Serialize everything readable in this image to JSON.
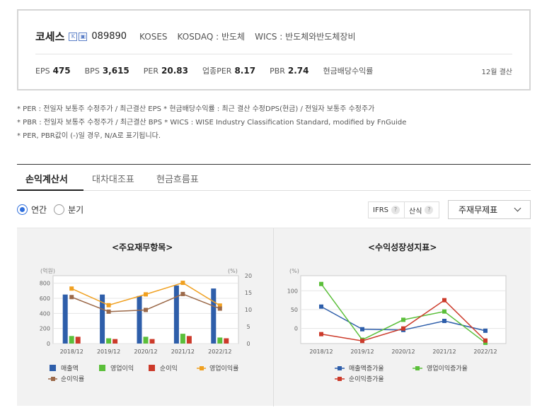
{
  "company": {
    "name": "코세스",
    "code": "089890",
    "english_name": "KOSES",
    "market": "KOSDAQ : 반도체",
    "wics": "WICS : 반도체와반도체장비"
  },
  "metrics": [
    {
      "label": "EPS",
      "value": "475"
    },
    {
      "label": "BPS",
      "value": "3,615"
    },
    {
      "label": "PER",
      "value": "20.83"
    },
    {
      "label": "업종PER",
      "value": "8.17"
    },
    {
      "label": "PBR",
      "value": "2.74"
    },
    {
      "label": "현금배당수익률",
      "value": ""
    }
  ],
  "settlement": "12월 결산",
  "notes": [
    "* PER : 전일자 보통주 수정주가 / 최근결산 EPS * 현금배당수익률 : 최근 결산 수정DPS(현금) / 전일자 보통주 수정주가",
    "* PBR : 전일자 보통주 수정주가 / 최근결산 BPS * WICS : WISE Industry Classification Standard, modified by FnGuide",
    "* PER, PBR값이 (-)일 경우, N/A로 표기됩니다."
  ],
  "tabs": [
    "손익계산서",
    "대차대조표",
    "현금흐름표"
  ],
  "period_options": [
    "연간",
    "분기"
  ],
  "options": {
    "ifrs": "IFRS",
    "calc": "산식",
    "help": "?"
  },
  "statement_select": "주재무제표",
  "colors": {
    "blue": "#2e5eaa",
    "green": "#5bbf3a",
    "red": "#cc3a2a",
    "orange": "#f0a020",
    "brown": "#9c6a4a",
    "accent": "#2f6fdc"
  },
  "chart_data": [
    {
      "type": "bar",
      "title": "<주요재무항목>",
      "ylabel": "(억원)",
      "y2label": "(%)",
      "ylim": [
        0,
        900
      ],
      "y2lim": [
        0,
        20
      ],
      "yticks": [
        "0",
        "200",
        "400",
        "600",
        "800"
      ],
      "y2ticks": [
        "0",
        "5",
        "10",
        "15",
        "20"
      ],
      "categories": [
        "2018/12",
        "2019/12",
        "2020/12",
        "2021/12",
        "2022/12"
      ],
      "series": [
        {
          "name": "매출액",
          "kind": "bar",
          "axis": "left",
          "color": "#2e5eaa",
          "values": [
            650,
            650,
            630,
            770,
            730
          ]
        },
        {
          "name": "영업이익",
          "kind": "bar",
          "axis": "left",
          "color": "#5bbf3a",
          "values": [
            100,
            70,
            90,
            130,
            80
          ]
        },
        {
          "name": "순이익",
          "kind": "bar",
          "axis": "left",
          "color": "#cc3a2a",
          "values": [
            90,
            60,
            60,
            100,
            70
          ]
        },
        {
          "name": "영업이익률",
          "kind": "line",
          "axis": "right",
          "color": "#f0a020",
          "values": [
            16.2,
            11.3,
            14.5,
            17.9,
            11.2
          ]
        },
        {
          "name": "순이익률",
          "kind": "line",
          "axis": "right",
          "color": "#9c6a4a",
          "values": [
            13.7,
            9.4,
            9.9,
            14.6,
            10.3
          ]
        }
      ],
      "legend": "bottom"
    },
    {
      "type": "line",
      "title": "<수익성장성지표>",
      "ylabel": "(%)",
      "ylim": [
        -40,
        140
      ],
      "yticks": [
        "0",
        "50",
        "100"
      ],
      "categories": [
        "2018/12",
        "2019/12",
        "2020/12",
        "2021/12",
        "2022/12"
      ],
      "series": [
        {
          "name": "매출액증가율",
          "color": "#2e5eaa",
          "values": [
            58,
            -2,
            -4,
            20,
            -6
          ]
        },
        {
          "name": "영업이익증가율",
          "color": "#5bbf3a",
          "values": [
            118,
            -30,
            23,
            45,
            -38
          ]
        },
        {
          "name": "순이익증가율",
          "color": "#cc3a2a",
          "values": [
            -15,
            -33,
            0,
            75,
            -32
          ]
        }
      ],
      "legend": "bottom"
    }
  ]
}
